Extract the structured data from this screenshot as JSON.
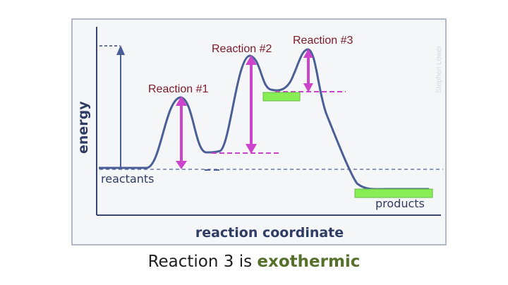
{
  "diagram": {
    "watermark": "Stephen Lower",
    "y_axis_label": "energy",
    "x_axis_label": "reaction coordinate",
    "state_labels": {
      "reactants": "reactants",
      "products": "products"
    },
    "reaction_labels": [
      "Reaction #1",
      "Reaction #2",
      "Reaction #3"
    ]
  },
  "caption": {
    "prefix": "Reaction 3 is ",
    "emphasis": "exothermic"
  },
  "colors": {
    "curve": "#4a5f96",
    "activation_arrow": "#cc44cc",
    "green_bar": "#88ee55",
    "frame": "#9aa3b8",
    "plot_bg": "#f4f5f8"
  }
}
